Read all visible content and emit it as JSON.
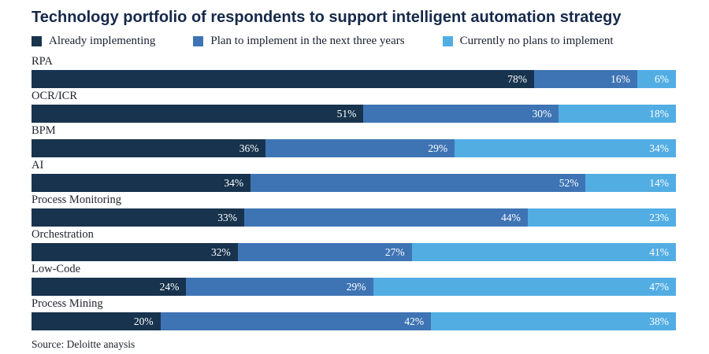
{
  "title": "Technology portfolio of respondents to support intelligent automation strategy",
  "source": "Source: Deloitte anaysis",
  "colors": {
    "title": "#16294B",
    "already": "#17334E",
    "plan": "#3E74B4",
    "noplans": "#52ADE3",
    "value_label": "#FFFFFF"
  },
  "legend": [
    {
      "label": "Already implementing",
      "color": "#17334E"
    },
    {
      "label": "Plan to implement in the next three years",
      "color": "#3E74B4"
    },
    {
      "label": "Currently no plans to implement",
      "color": "#52ADE3"
    }
  ],
  "chart_data": {
    "type": "bar",
    "orientation": "horizontal-stacked",
    "title": "Technology portfolio of respondents to support intelligent automation strategy",
    "categories": [
      "RPA",
      "OCR/ICR",
      "BPM",
      "AI",
      "Process Monitoring",
      "Orchestration",
      "Low-Code",
      "Process Mining"
    ],
    "series": [
      {
        "name": "Already implementing",
        "color": "#17334E",
        "values": [
          78,
          51,
          36,
          34,
          33,
          32,
          24,
          20
        ]
      },
      {
        "name": "Plan to implement in the next three years",
        "color": "#3E74B4",
        "values": [
          16,
          30,
          29,
          52,
          44,
          27,
          29,
          42
        ]
      },
      {
        "name": "Currently no plans to implement",
        "color": "#52ADE3",
        "values": [
          6,
          18,
          34,
          14,
          23,
          41,
          47,
          38
        ]
      }
    ],
    "value_suffix": "%",
    "value_labels": "inside-right",
    "xlim": [
      0,
      100
    ],
    "grid": false,
    "legend_position": "top"
  }
}
